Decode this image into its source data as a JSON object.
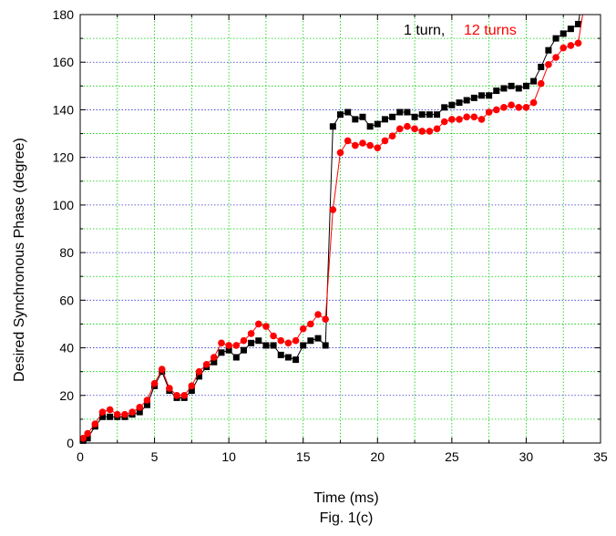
{
  "chart_data": {
    "type": "scatter",
    "xlabel": "Time (ms)",
    "ylabel": "Desired Synchronous Phase (degree)",
    "caption": "Fig. 1(c)",
    "xlim": [
      0,
      35
    ],
    "ylim": [
      0,
      180
    ],
    "x_ticks": [
      0,
      5,
      10,
      15,
      20,
      25,
      30,
      35
    ],
    "y_ticks": [
      0,
      20,
      40,
      60,
      80,
      100,
      120,
      140,
      160,
      180
    ],
    "grid": true,
    "legend_position": "top-right",
    "series": [
      {
        "name": "1 turn,",
        "color": "#000000",
        "marker": "square",
        "x": [
          0.2,
          0.5,
          1.0,
          1.5,
          2.0,
          2.5,
          3.0,
          3.5,
          4.0,
          4.5,
          5.0,
          5.5,
          6.0,
          6.5,
          7.0,
          7.5,
          8.0,
          8.5,
          9.0,
          9.5,
          10.0,
          10.5,
          11.0,
          11.5,
          12.0,
          12.5,
          13.0,
          13.5,
          14.0,
          14.5,
          15.0,
          15.5,
          16.0,
          16.5,
          17.0,
          17.5,
          18.0,
          18.5,
          19.0,
          19.5,
          20.0,
          20.5,
          21.0,
          21.5,
          22.0,
          22.5,
          23.0,
          23.5,
          24.0,
          24.5,
          25.0,
          25.5,
          26.0,
          26.5,
          27.0,
          27.5,
          28.0,
          28.5,
          29.0,
          29.5,
          30.0,
          30.5,
          31.0,
          31.5,
          32.0,
          32.5,
          33.0,
          33.5
        ],
        "y": [
          1,
          2,
          7,
          11,
          11,
          11,
          11,
          12,
          13,
          16,
          24,
          30,
          22,
          19,
          19,
          22,
          28,
          32,
          34,
          38,
          39,
          36,
          39,
          42,
          43,
          41,
          41,
          37,
          36,
          35,
          41,
          43,
          44,
          41,
          133,
          138,
          139,
          136,
          137,
          133,
          134,
          136,
          137,
          139,
          139,
          137,
          138,
          138,
          138,
          141,
          142,
          143,
          144,
          145,
          146,
          146,
          148,
          149,
          150,
          149,
          150,
          152,
          158,
          165,
          170,
          172,
          174,
          176
        ]
      },
      {
        "name": "12 turns",
        "color": "#ff0000",
        "marker": "circle",
        "x": [
          0.2,
          0.5,
          1.0,
          1.5,
          2.0,
          2.5,
          3.0,
          3.5,
          4.0,
          4.5,
          5.0,
          5.5,
          6.0,
          6.5,
          7.0,
          7.5,
          8.0,
          8.5,
          9.0,
          9.5,
          10.0,
          10.5,
          11.0,
          11.5,
          12.0,
          12.5,
          13.0,
          13.5,
          14.0,
          14.5,
          15.0,
          15.5,
          16.0,
          16.5,
          17.0,
          17.5,
          18.0,
          18.5,
          19.0,
          19.5,
          20.0,
          20.5,
          21.0,
          21.5,
          22.0,
          22.5,
          23.0,
          23.5,
          24.0,
          24.5,
          25.0,
          25.5,
          26.0,
          26.5,
          27.0,
          27.5,
          28.0,
          28.5,
          29.0,
          29.5,
          30.0,
          30.5,
          31.0,
          31.5,
          32.0,
          32.5,
          33.0,
          33.5
        ],
        "y": [
          2,
          4,
          8,
          13,
          14,
          12,
          12,
          13,
          15,
          18,
          25,
          31,
          23,
          20,
          20,
          24,
          30,
          33,
          36,
          42,
          41,
          41,
          43,
          46,
          50,
          49,
          45,
          43,
          42,
          43,
          48,
          50,
          54,
          52,
          98,
          122,
          127,
          125,
          126,
          125,
          124,
          127,
          129,
          132,
          133,
          132,
          131,
          131,
          132,
          135,
          136,
          136,
          137,
          137,
          136,
          139,
          140,
          141,
          142,
          141,
          141,
          143,
          151,
          159,
          162,
          166,
          167,
          168
        ]
      }
    ]
  }
}
